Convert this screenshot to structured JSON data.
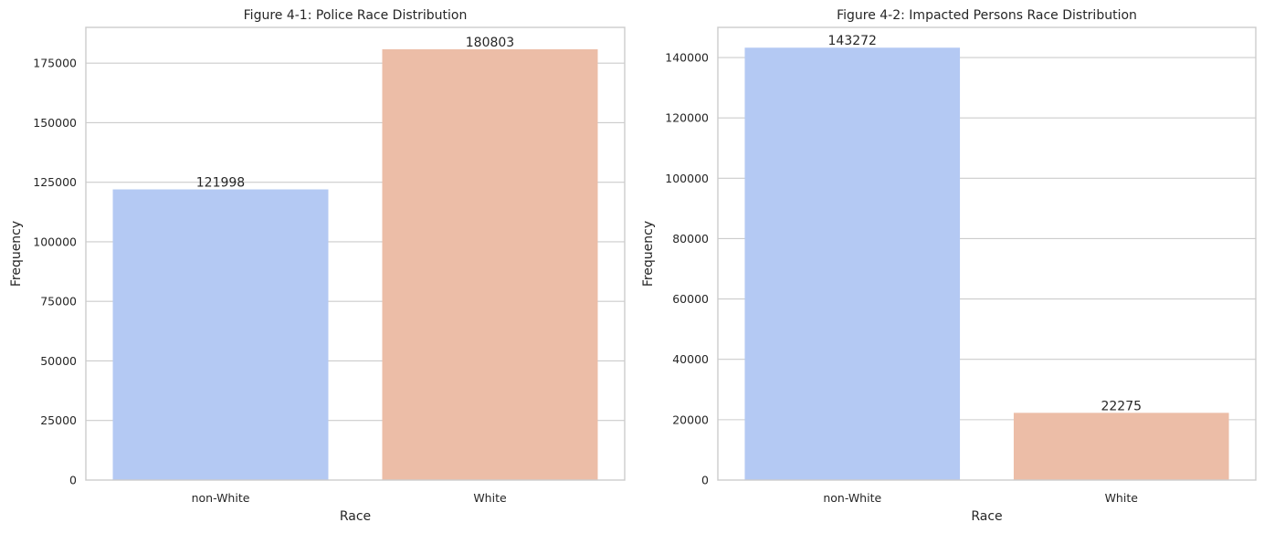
{
  "chart_data": [
    {
      "type": "bar",
      "title": "Figure 4-1: Police Race Distribution",
      "xlabel": "Race",
      "ylabel": "Frequency",
      "categories": [
        "non-White",
        "White"
      ],
      "values": [
        121998,
        180803
      ],
      "value_labels": [
        "121998",
        "180803"
      ],
      "ylim": [
        0,
        190000
      ],
      "yticks": [
        0,
        25000,
        50000,
        75000,
        100000,
        125000,
        150000,
        175000
      ],
      "ytick_labels": [
        "0",
        "25000",
        "50000",
        "75000",
        "100000",
        "125000",
        "150000",
        "175000"
      ],
      "colors": [
        "#b4c9f3",
        "#ecbda7"
      ],
      "grid": "y"
    },
    {
      "type": "bar",
      "title": "Figure 4-2: Impacted Persons Race Distribution",
      "xlabel": "Race",
      "ylabel": "Frequency",
      "categories": [
        "non-White",
        "White"
      ],
      "values": [
        143272,
        22275
      ],
      "value_labels": [
        "143272",
        "22275"
      ],
      "ylim": [
        0,
        150000
      ],
      "yticks": [
        0,
        20000,
        40000,
        60000,
        80000,
        100000,
        120000,
        140000
      ],
      "ytick_labels": [
        "0",
        "20000",
        "40000",
        "60000",
        "80000",
        "100000",
        "120000",
        "140000"
      ],
      "colors": [
        "#b4c9f3",
        "#ecbda7"
      ],
      "grid": "y"
    }
  ]
}
